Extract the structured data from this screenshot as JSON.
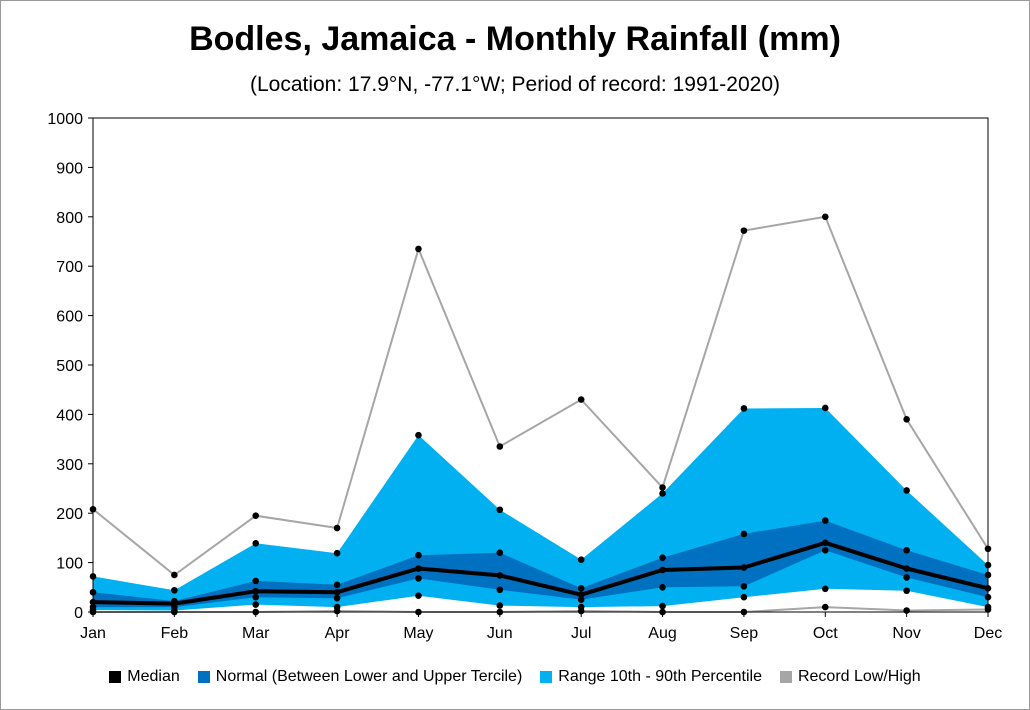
{
  "chart_data": {
    "type": "area",
    "title": "Bodles, Jamaica - Monthly Rainfall (mm)",
    "subtitle": "(Location: 17.9°N, -77.1°W; Period of record: 1991-2020)",
    "categories": [
      "Jan",
      "Feb",
      "Mar",
      "Apr",
      "May",
      "Jun",
      "Jul",
      "Aug",
      "Sep",
      "Oct",
      "Nov",
      "Dec"
    ],
    "ylim": [
      0,
      1000
    ],
    "yticks": [
      0,
      100,
      200,
      300,
      400,
      500,
      600,
      700,
      800,
      900,
      1000
    ],
    "grid": false,
    "legend_position": "bottom",
    "series": [
      {
        "name": "Median",
        "role": "median",
        "color": "#000000",
        "values": [
          20,
          17,
          42,
          40,
          88,
          74,
          35,
          85,
          90,
          140,
          88,
          48
        ]
      },
      {
        "name": "Normal (Between Lower and Upper Tercile)",
        "role": "tercile_band",
        "color": "#0070c0",
        "lower": [
          10,
          10,
          30,
          28,
          68,
          45,
          25,
          50,
          52,
          125,
          70,
          30
        ],
        "upper": [
          40,
          22,
          63,
          55,
          115,
          120,
          48,
          110,
          158,
          185,
          125,
          75
        ]
      },
      {
        "name": "Range 10th - 90th Percentile",
        "role": "percentile_band",
        "color": "#00b0f0",
        "lower": [
          4,
          3,
          15,
          10,
          33,
          13,
          10,
          12,
          30,
          47,
          43,
          10
        ],
        "upper": [
          72,
          44,
          139,
          119,
          358,
          207,
          106,
          240,
          412,
          413,
          246,
          95
        ]
      },
      {
        "name": "Record Low/High",
        "role": "record",
        "color": "#a6a6a6",
        "lower": [
          0,
          0,
          0,
          2,
          0,
          0,
          2,
          0,
          0,
          10,
          3,
          5
        ],
        "upper": [
          208,
          75,
          195,
          170,
          735,
          335,
          430,
          252,
          772,
          800,
          390,
          128
        ]
      }
    ]
  }
}
